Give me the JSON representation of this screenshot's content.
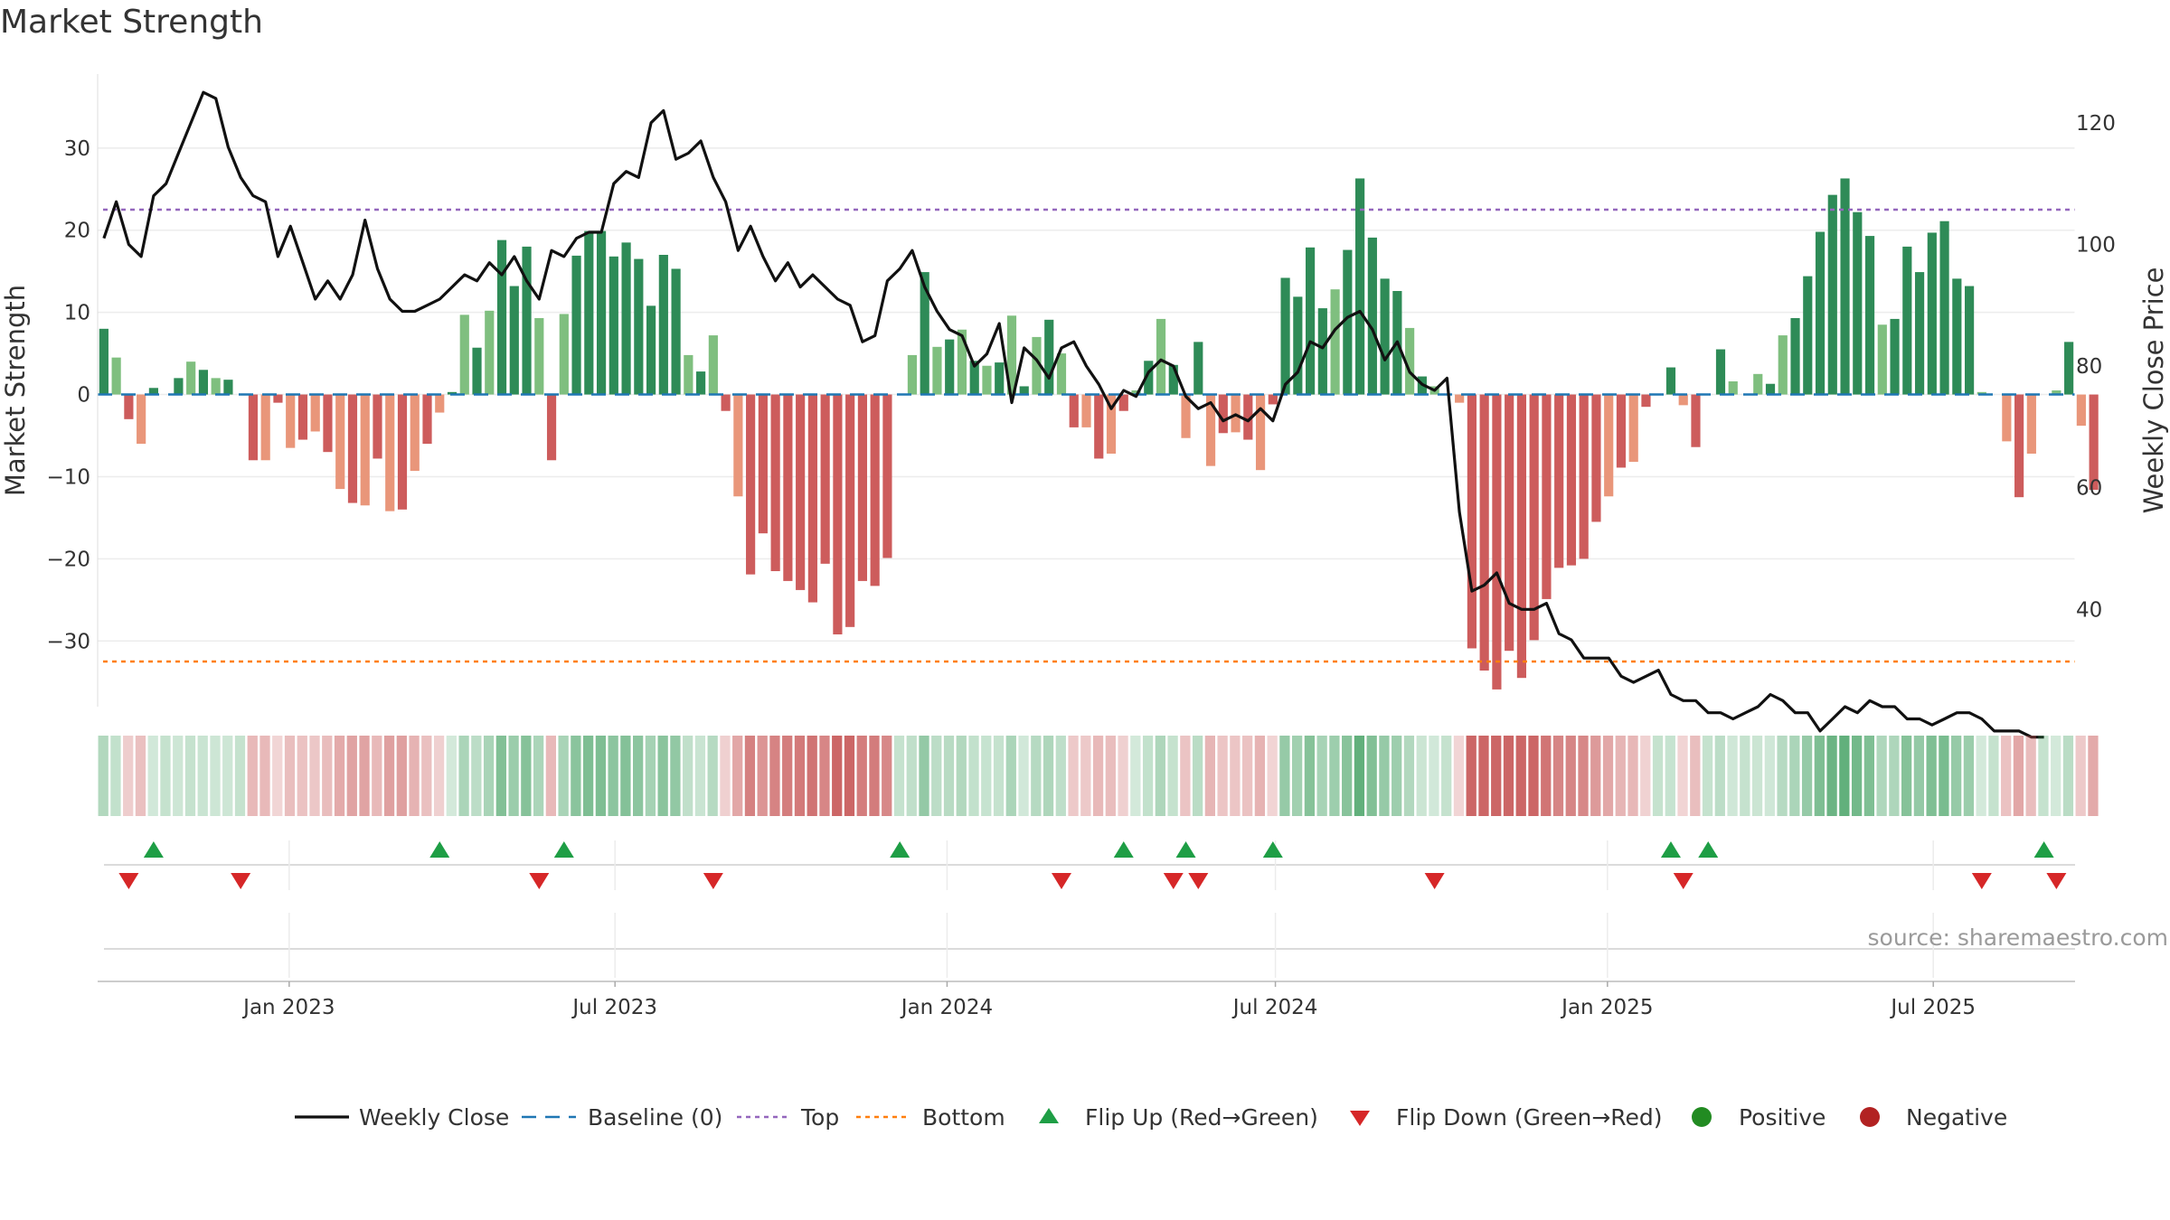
{
  "title": "Market Strength",
  "source": "source: sharemaestro.com",
  "colors": {
    "green_dark": "#2e8b57",
    "green_light": "#7fbf7f",
    "red_dark": "#cd5c5c",
    "red_light": "#e9967a",
    "line": "#111111",
    "baseline": "#1f77b4",
    "top": "#9467bd",
    "bottom": "#ff7f0e",
    "flip_up": "#1e9e45",
    "flip_down": "#d62728",
    "positive": "#228b22",
    "negative": "#b22222"
  },
  "chart_data": {
    "type": "bar",
    "y_left": {
      "label": "Market Strength",
      "range": [
        -38,
        39
      ],
      "ticks": [
        30,
        20,
        10,
        0,
        -10,
        -20,
        -30
      ]
    },
    "y_right": {
      "label": "Weekly Close Price",
      "range": [
        24,
        128
      ],
      "ticks": [
        120,
        100,
        80,
        60,
        40
      ]
    },
    "x_range": [
      0,
      159
    ],
    "x_ticks": [
      {
        "label": "Jan 2023",
        "week": 14.9
      },
      {
        "label": "Jul 2023",
        "week": 41.1
      },
      {
        "label": "Jan 2024",
        "week": 67.8
      },
      {
        "label": "Jul 2024",
        "week": 94.2
      },
      {
        "label": "Jan 2025",
        "week": 120.9
      },
      {
        "label": "Jul 2025",
        "week": 147.1
      }
    ],
    "top_threshold": 22.5,
    "bottom_threshold": -32.5,
    "strength": [
      8,
      4.5,
      -3,
      -6,
      0.8,
      0,
      2,
      4,
      3,
      2,
      1.8,
      0,
      -8,
      -8,
      -1,
      -6.5,
      -5.5,
      -4.5,
      -7,
      -11.5,
      -13.2,
      -13.5,
      -7.8,
      -14.2,
      -14,
      -9.3,
      -6,
      -2.2,
      0.3,
      9.7,
      5.7,
      10.2,
      18.8,
      13.2,
      18,
      9.3,
      -8,
      9.8,
      16.9,
      19.9,
      19.9,
      16.8,
      18.5,
      16.5,
      10.8,
      17,
      15.3,
      4.8,
      2.8,
      7.2,
      -2,
      -12.4,
      -21.9,
      -16.9,
      -21.5,
      -22.7,
      -23.8,
      -25.3,
      -20.6,
      -29.2,
      -28.3,
      -22.7,
      -23.3,
      -19.9,
      0,
      4.8,
      14.9,
      5.8,
      6.7,
      7.9,
      4.1,
      3.5,
      3.9,
      9.6,
      1,
      7,
      9.1,
      5,
      -4,
      -4,
      -7.8,
      -7.2,
      -2,
      0.5,
      4.1,
      9.2,
      3.6,
      -5.3,
      6.4,
      -8.7,
      -4.7,
      -4.6,
      -5.5,
      -9.2,
      -1.2,
      14.2,
      11.9,
      17.9,
      10.5,
      12.8,
      17.6,
      26.3,
      19.1,
      14.1,
      12.6,
      8.1,
      2.2,
      1,
      0,
      -1,
      -30.9,
      -33.6,
      -35.9,
      -31.2,
      -34.5,
      -29.9,
      -24.9,
      -21.1,
      -20.8,
      -20,
      -15.5,
      -12.4,
      -8.9,
      -8.2,
      -1.5,
      0,
      3.3,
      -1.3,
      -6.4,
      0,
      5.5,
      1.6,
      0,
      2.5,
      1.3,
      7.2,
      9.3,
      14.4,
      19.8,
      24.3,
      26.3,
      22.2,
      19.3,
      8.5,
      9.2,
      18,
      14.9,
      19.7,
      21.1,
      14.1,
      13.2,
      0.3,
      0,
      -5.7,
      -12.5,
      -7.2,
      0,
      0.5,
      6.4,
      -3.8,
      -11.6
    ],
    "weekly_close": [
      101,
      107,
      100,
      98,
      108,
      110,
      115,
      120,
      125,
      124,
      116,
      111,
      108,
      107,
      98,
      103,
      97,
      91,
      94,
      91,
      95,
      104,
      96,
      91,
      89,
      89,
      90,
      91,
      93,
      95,
      94,
      97,
      95,
      98,
      94,
      91,
      99,
      98,
      101,
      102,
      102,
      110,
      112,
      111,
      120,
      122,
      114,
      115,
      117,
      111,
      107,
      99,
      103,
      98,
      94,
      97,
      93,
      95,
      93,
      91,
      90,
      84,
      85,
      94,
      96,
      99,
      93,
      89,
      86,
      85,
      80,
      82,
      87,
      74,
      83,
      81,
      78,
      83,
      84,
      80,
      77,
      73,
      76,
      75,
      79,
      81,
      80,
      75,
      73,
      74,
      71,
      72,
      71,
      73,
      71,
      77,
      79,
      84,
      83,
      86,
      88,
      89,
      86,
      81,
      84,
      79,
      77,
      76,
      78,
      56,
      43,
      44,
      46,
      41,
      40,
      40,
      41,
      36,
      35,
      32,
      32,
      32,
      29,
      28,
      29,
      30,
      26,
      25,
      25,
      23,
      23,
      22,
      23,
      24,
      26,
      25,
      23,
      23,
      20,
      22,
      24,
      23,
      25,
      24,
      24,
      22,
      22,
      21,
      22,
      23,
      23,
      22,
      20,
      20,
      20,
      19,
      19
    ],
    "flips_up": [
      4,
      27,
      37,
      64,
      82,
      87,
      94,
      126,
      129,
      156
    ],
    "flips_down": [
      2,
      11,
      35,
      49,
      77,
      86,
      88,
      107,
      127,
      151,
      157
    ],
    "legend": [
      "Weekly Close",
      "Baseline (0)",
      "Top",
      "Bottom",
      "Flip Up (Red→Green)",
      "Flip Down (Green→Red)",
      "Positive",
      "Negative"
    ]
  }
}
